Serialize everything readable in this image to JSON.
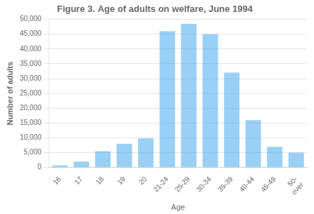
{
  "chart_data": {
    "type": "bar",
    "title": "Figure 3. Age of adults on welfare, June 1994",
    "ylabel": "Number of adults",
    "xlabel": "Age",
    "categories": [
      "16",
      "17",
      "18",
      "19",
      "20",
      "21-24",
      "25-29",
      "30-34",
      "35-39",
      "40-44",
      "45-49",
      "50-\nover"
    ],
    "values": [
      700,
      2000,
      5500,
      8000,
      9800,
      46000,
      48500,
      45000,
      32000,
      16000,
      7000,
      5000
    ],
    "ylim": [
      0,
      50000
    ],
    "yticks": [
      0,
      {
        "value": 5000,
        "label": "5,000"
      },
      {
        "value": 10000,
        "label": "10,000"
      },
      {
        "value": 15000,
        "label": "15,000"
      },
      {
        "value": 20000,
        "label": "20,000"
      },
      {
        "value": 25000,
        "label": "25,000"
      },
      {
        "value": 30000,
        "label": "30,000"
      },
      {
        "value": 35000,
        "label": "35,000"
      },
      {
        "value": 40000,
        "label": "40,000"
      },
      {
        "value": 45000,
        "label": "45,000"
      },
      {
        "value": 50000,
        "label": "50,000"
      }
    ],
    "grid": true
  }
}
